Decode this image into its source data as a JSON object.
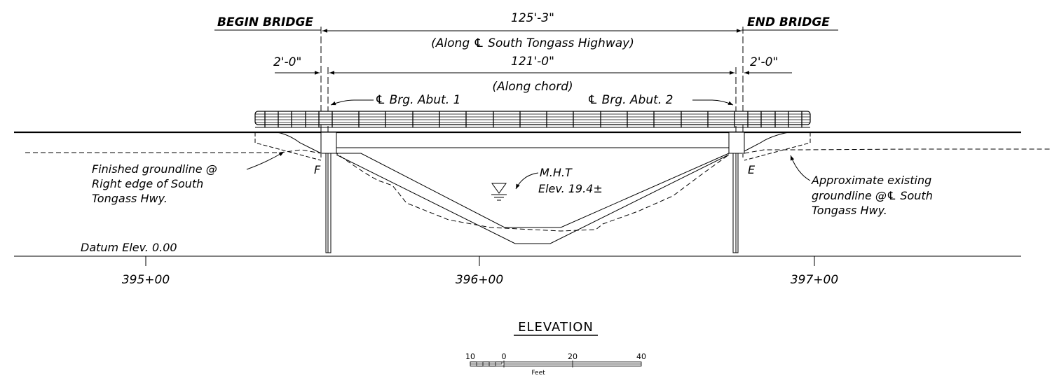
{
  "drawing": {
    "begin_label": "BEGIN BRIDGE",
    "end_label": "END BRIDGE",
    "overall_length": "125'-3\"",
    "overall_note": "(Along ℄ South Tongass Highway)",
    "chord_length": "121'-0\"",
    "chord_note": "(Along chord)",
    "left_offset": "2'-0\"",
    "right_offset": "2'-0\"",
    "brg_abut_1": "℄ Brg. Abut. 1",
    "brg_abut_2": "℄ Brg. Abut. 2",
    "finished_groundline": [
      "Finished groundline @",
      "Right edge of South",
      "Tongass Hwy."
    ],
    "existing_groundline": [
      "Approximate existing",
      "groundline @℄ South",
      "Tongass Hwy."
    ],
    "mht": [
      "M.H.T",
      "Elev. 19.4±"
    ],
    "abutment_f": "F",
    "abutment_e": "E",
    "datum": "Datum Elev. 0.00",
    "stations": [
      "395+00",
      "396+00",
      "397+00"
    ],
    "title": "ELEVATION"
  },
  "scale_bar": {
    "ticks": [
      "10",
      "0",
      "20",
      "40"
    ],
    "unit": "Feet"
  }
}
